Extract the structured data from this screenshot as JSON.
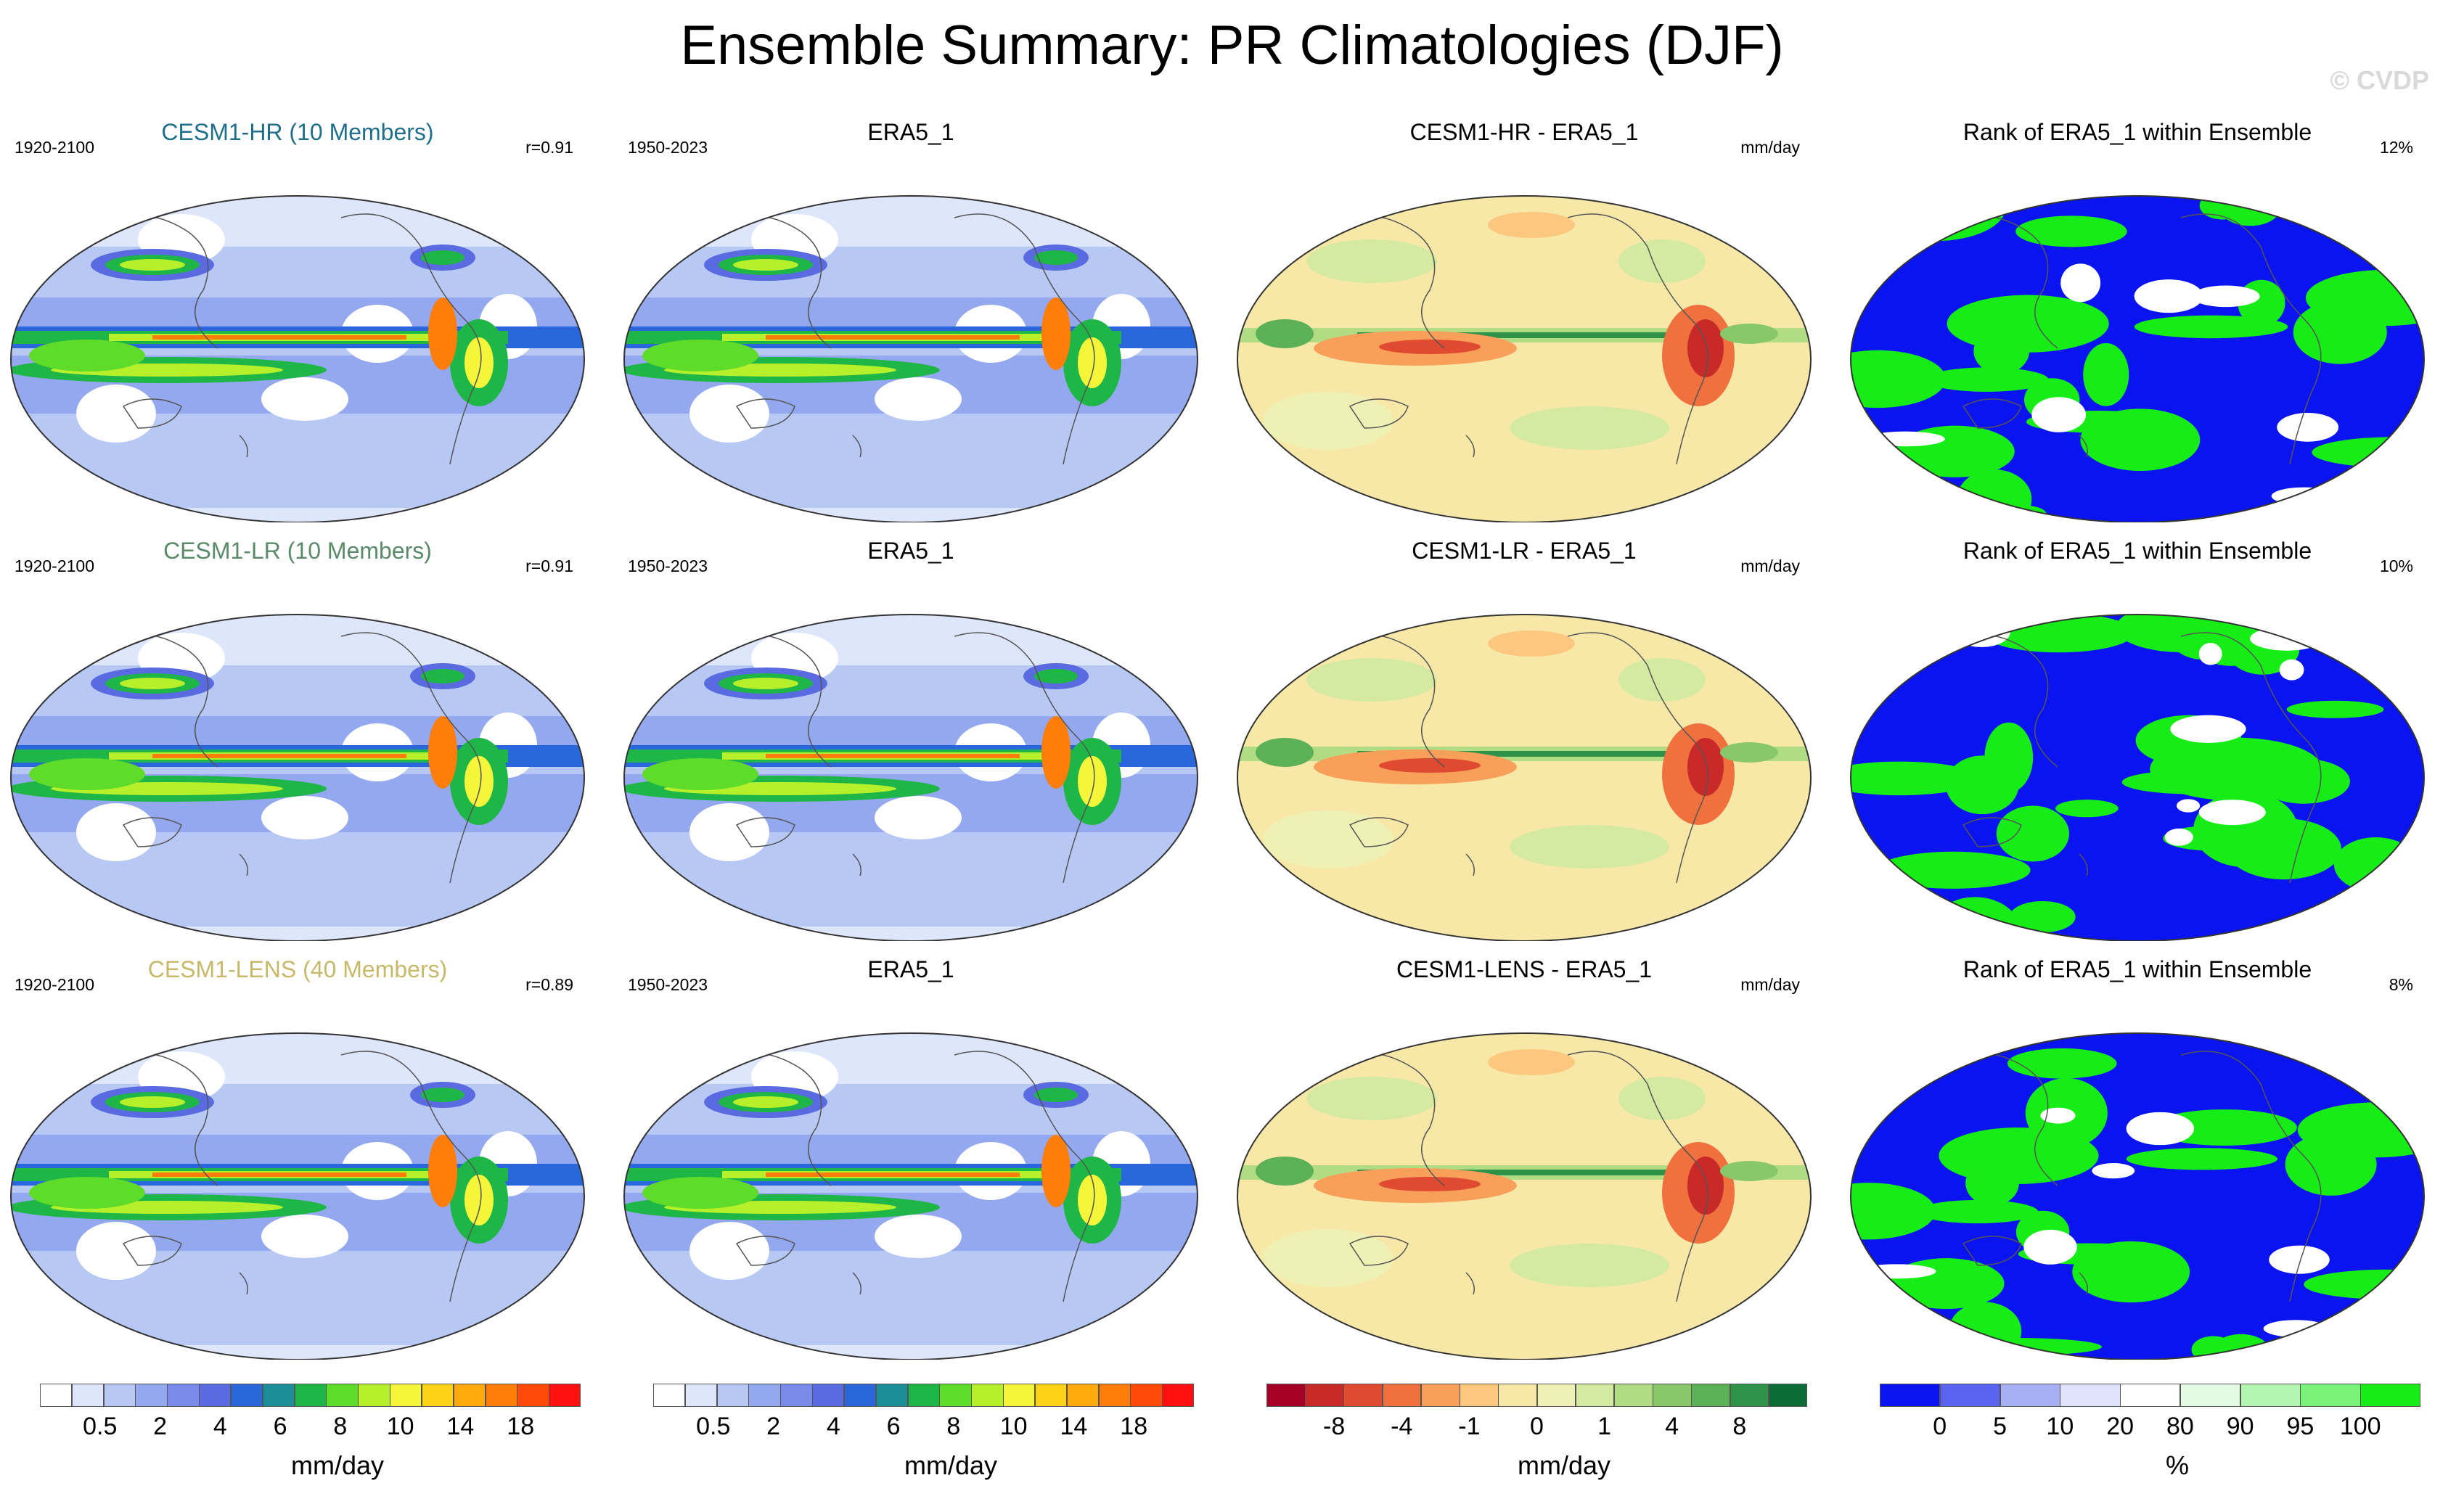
{
  "title": "Ensemble Summary: PR Climatologies (DJF)",
  "copyright": "© CVDP",
  "rows": [
    {
      "model": {
        "title": "CESM1-HR (10 Members)",
        "title_color": "#1f6f8b",
        "years": "1920-2100",
        "corr": "r=0.91"
      },
      "obs": {
        "title": "ERA5_1",
        "years": "1950-2023"
      },
      "diff": {
        "title": "CESM1-HR - ERA5_1",
        "units": "mm/day"
      },
      "rank": {
        "title": "Rank of ERA5_1 within Ensemble",
        "pct": "12%"
      }
    },
    {
      "model": {
        "title": "CESM1-LR (10 Members)",
        "title_color": "#5a8a6a",
        "years": "1920-2100",
        "corr": "r=0.91"
      },
      "obs": {
        "title": "ERA5_1",
        "years": "1950-2023"
      },
      "diff": {
        "title": "CESM1-LR - ERA5_1",
        "units": "mm/day"
      },
      "rank": {
        "title": "Rank of ERA5_1 within Ensemble",
        "pct": "10%"
      }
    },
    {
      "model": {
        "title": "CESM1-LENS (40 Members)",
        "title_color": "#c8b86a",
        "years": "1920-2100",
        "corr": "r=0.89"
      },
      "obs": {
        "title": "ERA5_1",
        "years": "1950-2023"
      },
      "diff": {
        "title": "CESM1-LENS - ERA5_1",
        "units": "mm/day"
      },
      "rank": {
        "title": "Rank of ERA5_1 within Ensemble",
        "pct": "8%"
      }
    }
  ],
  "colorbars": [
    {
      "label": "mm/day",
      "colors": [
        "#ffffff",
        "#dde6fa",
        "#b8c8f5",
        "#94a8ef",
        "#7a8aea",
        "#5a6ae0",
        "#2a66dc",
        "#1a8f9a",
        "#1fb648",
        "#5fdc2a",
        "#b6f02a",
        "#f5f53a",
        "#ffd21a",
        "#ffa90f",
        "#ff7d0a",
        "#ff4a08",
        "#ff1010"
      ],
      "ticks": [
        "0.5",
        "2",
        "4",
        "6",
        "8",
        "10",
        "14",
        "18"
      ]
    },
    {
      "label": "mm/day",
      "colors": [
        "#ffffff",
        "#dde6fa",
        "#b8c8f5",
        "#94a8ef",
        "#7a8aea",
        "#5a6ae0",
        "#2a66dc",
        "#1a8f9a",
        "#1fb648",
        "#5fdc2a",
        "#b6f02a",
        "#f5f53a",
        "#ffd21a",
        "#ffa90f",
        "#ff7d0a",
        "#ff4a08",
        "#ff1010"
      ],
      "ticks": [
        "0.5",
        "2",
        "4",
        "6",
        "8",
        "10",
        "14",
        "18"
      ]
    },
    {
      "label": "mm/day",
      "colors": [
        "#a50026",
        "#c82a2a",
        "#e04a30",
        "#f0703e",
        "#f8a05a",
        "#fcc880",
        "#f8e8a8",
        "#eef0b4",
        "#d4eaa0",
        "#b2dc84",
        "#88c86a",
        "#5cb056",
        "#2e9248",
        "#0b6b34"
      ],
      "ticks": [
        "-8",
        "-4",
        "-1",
        "0",
        "1",
        "4",
        "8"
      ]
    },
    {
      "label": "%",
      "colors": [
        "#0a14f0",
        "#5a64f0",
        "#a8b0f4",
        "#dfe2fb",
        "#ffffff",
        "#e2fbe2",
        "#b4f5b4",
        "#7af27a",
        "#16ec16"
      ],
      "ticks": [
        "0",
        "5",
        "10",
        "20",
        "80",
        "90",
        "95",
        "100"
      ]
    }
  ]
}
